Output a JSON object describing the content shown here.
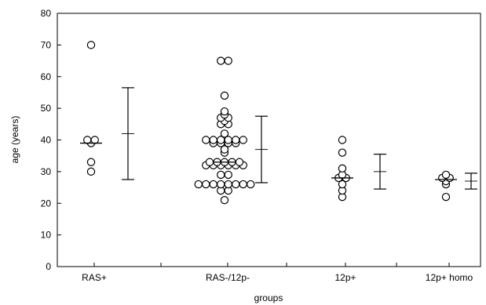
{
  "chart_data": {
    "type": "scatter",
    "subtype": "dot-plot with mean and standard deviation bars",
    "title": "",
    "xlabel": "groups",
    "ylabel": "age (years)",
    "ylim": [
      0,
      80
    ],
    "yticks": [
      0,
      10,
      20,
      30,
      40,
      50,
      60,
      70,
      80
    ],
    "grid": false,
    "legend": "none",
    "categories": [
      "RAS+",
      "RAS-/12p-",
      "12p+",
      "12p+ homo"
    ],
    "groups": [
      {
        "name": "RAS+",
        "points": [
          70,
          40,
          39,
          40,
          33,
          30
        ],
        "median": 39,
        "mean": 42,
        "sd_low": 27.5,
        "sd_high": 56.5
      },
      {
        "name": "RAS-/12p-",
        "points": [
          65,
          65,
          54,
          49,
          48,
          47,
          47,
          46,
          45,
          45,
          42,
          40,
          40,
          40,
          40,
          40,
          40,
          39,
          39,
          39,
          39,
          37,
          36,
          33,
          33,
          33,
          33,
          33,
          32,
          32,
          32,
          32,
          32,
          32,
          29,
          29,
          26,
          26,
          26,
          26,
          26,
          26,
          26,
          26,
          24,
          24,
          21
        ],
        "median": 33,
        "mean": 37,
        "sd_low": 26.5,
        "sd_high": 47.5
      },
      {
        "name": "12p+",
        "points": [
          40,
          36,
          31,
          29,
          28,
          28,
          26,
          24,
          22
        ],
        "median": 28,
        "mean": 30,
        "sd_low": 24.5,
        "sd_high": 35.5
      },
      {
        "name": "12p+ homo",
        "points": [
          29,
          28,
          27,
          28,
          26,
          22
        ],
        "median": 27.5,
        "mean": 27,
        "sd_low": 24.5,
        "sd_high": 29.5
      }
    ]
  }
}
